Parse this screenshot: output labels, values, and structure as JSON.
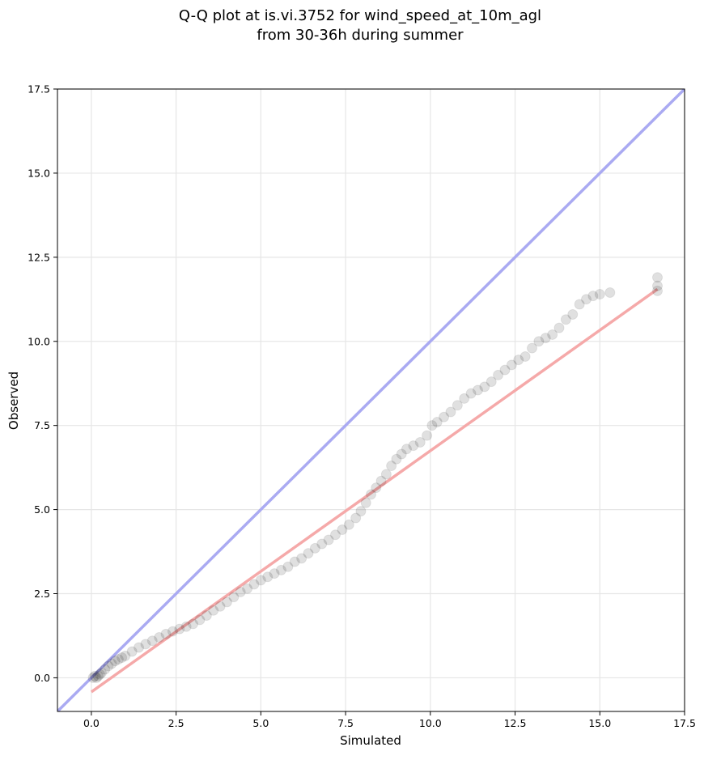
{
  "chart_data": {
    "type": "scatter",
    "title": [
      "Q-Q plot at is.vi.3752 for wind_speed_at_10m_agl",
      "from 30-36h during summer"
    ],
    "xlabel": "Simulated",
    "ylabel": "Observed",
    "xlim": [
      -1.0,
      17.5
    ],
    "ylim": [
      -1.0,
      17.5
    ],
    "grid": true,
    "x_ticks": [
      {
        "value": 0.0,
        "label": "0.0"
      },
      {
        "value": 2.5,
        "label": "2.5"
      },
      {
        "value": 5.0,
        "label": "5.0"
      },
      {
        "value": 7.5,
        "label": "7.5"
      },
      {
        "value": 10.0,
        "label": "10.0"
      },
      {
        "value": 12.5,
        "label": "12.5"
      },
      {
        "value": 15.0,
        "label": "15.0"
      },
      {
        "value": 17.5,
        "label": "17.5"
      }
    ],
    "y_ticks": [
      {
        "value": 0.0,
        "label": "0.0"
      },
      {
        "value": 2.5,
        "label": "2.5"
      },
      {
        "value": 5.0,
        "label": "5.0"
      },
      {
        "value": 7.5,
        "label": "7.5"
      },
      {
        "value": 10.0,
        "label": "10.0"
      },
      {
        "value": 12.5,
        "label": "12.5"
      },
      {
        "value": 15.0,
        "label": "15.0"
      },
      {
        "value": 17.5,
        "label": "17.5"
      }
    ],
    "reference_line": {
      "x": [
        -1.0,
        17.5
      ],
      "y": [
        -1.0,
        17.5
      ],
      "color": "#aaaaf2"
    },
    "fit_line": {
      "x": [
        0.0,
        16.7
      ],
      "y": [
        -0.42,
        11.55
      ],
      "color": "#f5a9a9"
    },
    "marker_color": "#000000",
    "points_x": [
      0.05,
      0.1,
      0.15,
      0.2,
      0.25,
      0.3,
      0.4,
      0.5,
      0.6,
      0.7,
      0.8,
      0.9,
      1.0,
      1.2,
      1.4,
      1.6,
      1.8,
      2.0,
      2.2,
      2.4,
      2.6,
      2.8,
      3.0,
      3.2,
      3.4,
      3.6,
      3.8,
      4.0,
      4.2,
      4.4,
      4.6,
      4.8,
      5.0,
      5.2,
      5.4,
      5.6,
      5.8,
      6.0,
      6.2,
      6.4,
      6.6,
      6.8,
      7.0,
      7.2,
      7.4,
      7.6,
      7.8,
      7.95,
      8.1,
      8.25,
      8.4,
      8.55,
      8.7,
      8.85,
      9.0,
      9.15,
      9.3,
      9.5,
      9.7,
      9.9,
      10.05,
      10.2,
      10.4,
      10.6,
      10.8,
      11.0,
      11.2,
      11.4,
      11.6,
      11.8,
      12.0,
      12.2,
      12.4,
      12.6,
      12.8,
      13.0,
      13.2,
      13.4,
      13.6,
      13.8,
      14.0,
      14.2,
      14.4,
      14.6,
      14.8,
      15.0,
      15.3,
      16.7,
      16.7,
      16.7
    ],
    "points_y": [
      0.0,
      0.05,
      0.0,
      0.05,
      0.1,
      0.15,
      0.25,
      0.35,
      0.42,
      0.5,
      0.55,
      0.6,
      0.65,
      0.78,
      0.9,
      1.0,
      1.1,
      1.2,
      1.3,
      1.38,
      1.45,
      1.52,
      1.6,
      1.72,
      1.85,
      2.0,
      2.12,
      2.25,
      2.4,
      2.55,
      2.65,
      2.78,
      2.9,
      3.0,
      3.1,
      3.2,
      3.3,
      3.45,
      3.55,
      3.7,
      3.85,
      3.98,
      4.1,
      4.25,
      4.4,
      4.55,
      4.75,
      4.95,
      5.2,
      5.45,
      5.65,
      5.85,
      6.05,
      6.3,
      6.5,
      6.65,
      6.8,
      6.9,
      7.0,
      7.2,
      7.5,
      7.6,
      7.75,
      7.9,
      8.1,
      8.3,
      8.45,
      8.55,
      8.65,
      8.8,
      9.0,
      9.15,
      9.3,
      9.45,
      9.55,
      9.8,
      10.0,
      10.1,
      10.2,
      10.4,
      10.65,
      10.8,
      11.1,
      11.25,
      11.35,
      11.4,
      11.45,
      11.5,
      11.65,
      11.9
    ]
  }
}
